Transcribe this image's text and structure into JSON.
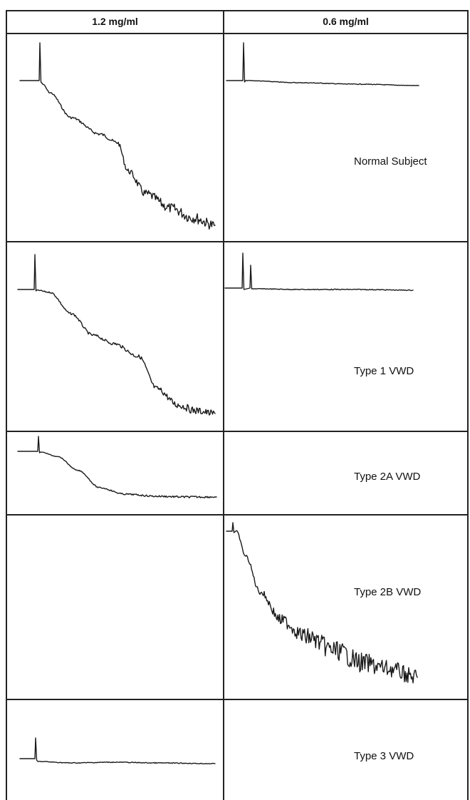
{
  "headers": [
    "1.2 mg/ml",
    "0.6 mg/ml"
  ],
  "rows": [
    {
      "label": "Normal Subject"
    },
    {
      "label": "Type 1 VWD"
    },
    {
      "label": "Type 2A VWD"
    },
    {
      "label": "Type 2B VWD"
    },
    {
      "label": "Type 3 VWD"
    }
  ]
}
